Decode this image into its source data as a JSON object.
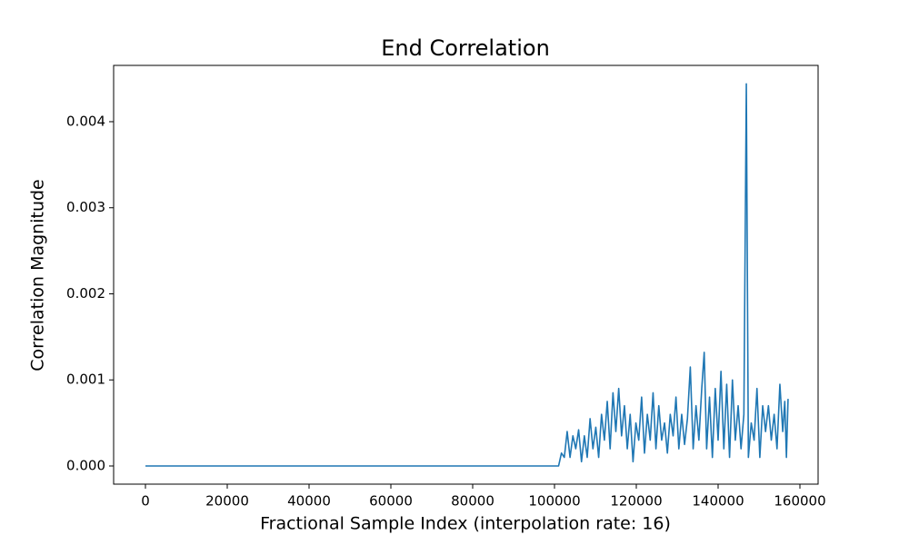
{
  "chart_data": {
    "type": "line",
    "title": "End Correlation",
    "xlabel": "Fractional Sample Index (interpolation rate: 16)",
    "ylabel": "Correlation Magnitude",
    "color": "#1f77b4",
    "xlim": [
      -7778,
      164444
    ],
    "ylim": [
      -0.000211,
      0.004654
    ],
    "xticks": [
      0,
      20000,
      40000,
      60000,
      80000,
      100000,
      120000,
      140000,
      160000
    ],
    "yticks": [
      {
        "value": 0,
        "label": "0.000"
      },
      {
        "value": 0.001,
        "label": "0.001"
      },
      {
        "value": 0.002,
        "label": "0.002"
      },
      {
        "value": 0.003,
        "label": "0.003"
      },
      {
        "value": 0.004,
        "label": "0.004"
      }
    ],
    "x": [
      0,
      101000,
      101700,
      102400,
      103100,
      103800,
      104500,
      105200,
      105900,
      106600,
      107300,
      108000,
      108700,
      109400,
      110100,
      110800,
      111500,
      112200,
      112900,
      113600,
      114300,
      115000,
      115700,
      116400,
      117100,
      117800,
      118500,
      119200,
      119900,
      120600,
      121300,
      122000,
      122700,
      123400,
      124100,
      124800,
      125500,
      126200,
      126900,
      127600,
      128300,
      129000,
      129700,
      130400,
      131100,
      131800,
      132500,
      133200,
      133900,
      134600,
      135300,
      136000,
      136600,
      137200,
      137900,
      138600,
      139300,
      140000,
      140700,
      141400,
      142100,
      142800,
      143500,
      144200,
      144900,
      145600,
      146300,
      146900,
      147400,
      148100,
      148800,
      149500,
      150200,
      150900,
      151600,
      152300,
      153000,
      153700,
      154400,
      155100,
      155800,
      156300,
      156700,
      157100
    ],
    "values": [
      0,
      0,
      0.00015,
      0.0001,
      0.0004,
      0.0001,
      0.00035,
      0.0002,
      0.00042,
      5e-05,
      0.00035,
      0.0001,
      0.00055,
      0.0002,
      0.00045,
      0.0001,
      0.0006,
      0.0003,
      0.00075,
      0.0002,
      0.00085,
      0.0004,
      0.0009,
      0.00035,
      0.0007,
      0.0002,
      0.0006,
      5e-05,
      0.0005,
      0.0003,
      0.0008,
      0.00015,
      0.0006,
      0.0003,
      0.00085,
      0.0002,
      0.0007,
      0.0003,
      0.0005,
      0.00015,
      0.0006,
      0.00035,
      0.0008,
      0.0002,
      0.0006,
      0.00025,
      0.00055,
      0.00115,
      0.0002,
      0.0007,
      0.0003,
      0.0009,
      0.00132,
      0.0002,
      0.0008,
      0.0001,
      0.0009,
      0.0003,
      0.0011,
      0.0002,
      0.00095,
      0.0001,
      0.001,
      0.0003,
      0.0007,
      0.0002,
      0.0006,
      0.00444,
      0.0001,
      0.0005,
      0.0003,
      0.0009,
      0.0001,
      0.0007,
      0.0004,
      0.0007,
      0.0003,
      0.0006,
      0.0002,
      0.00095,
      0.0004,
      0.00075,
      0.0001,
      0.00078
    ]
  }
}
